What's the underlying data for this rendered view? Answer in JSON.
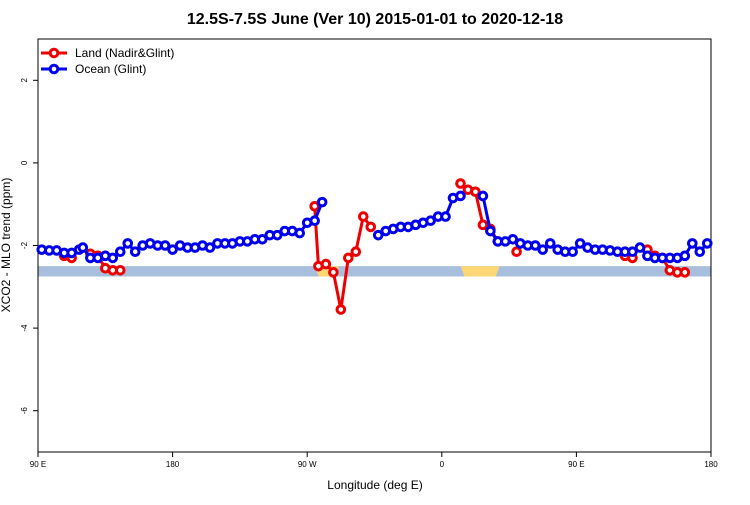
{
  "chart_data": {
    "type": "line",
    "title": "12.5S-7.5S June (Ver 10)   2015-01-01 to 2020-12-18",
    "xlabel": "Longitude (deg E)",
    "ylabel": "XCO2 - MLO trend (ppm)",
    "xlim": [
      90,
      450
    ],
    "ylim": [
      -7,
      3
    ],
    "x_ticks": [
      {
        "value": 90,
        "label": "90 E"
      },
      {
        "value": 162,
        "label": "180"
      },
      {
        "value": 234,
        "label": "90 W"
      },
      {
        "value": 306,
        "label": "0"
      },
      {
        "value": 378,
        "label": "90 E"
      },
      {
        "value": 450,
        "label": "180"
      }
    ],
    "y_ticks": [
      {
        "value": -6,
        "label": "-6"
      },
      {
        "value": -4,
        "label": "-4"
      },
      {
        "value": -2,
        "label": "-2"
      },
      {
        "value": 0,
        "label": "0"
      },
      {
        "value": 2,
        "label": "2"
      }
    ],
    "legend": {
      "position": "top-left",
      "entries": [
        {
          "label": "Land (Nadir&Glint)",
          "color": "#ee0000"
        },
        {
          "label": "Ocean (Glint)",
          "color": "#0000ee"
        }
      ]
    },
    "band": {
      "y_range": [
        -2.75,
        -2.5
      ],
      "ocean_color": "#a7bedc",
      "land_color": "#fdd776",
      "land_segments": [
        [
          238,
          251
        ],
        [
          316,
          337
        ]
      ]
    },
    "series": [
      {
        "name": "Land (Nadir&Glint)",
        "color": "#ee0000",
        "segments": [
          [
            [
              104,
              -2.25
            ],
            [
              108,
              -2.3
            ]
          ],
          [
            [
              118,
              -2.2
            ],
            [
              122,
              -2.25
            ],
            [
              126,
              -2.55
            ],
            [
              130,
              -2.6
            ],
            [
              134,
              -2.6
            ]
          ],
          [
            [
              238,
              -1.05
            ],
            [
              240,
              -2.5
            ],
            [
              244,
              -2.45
            ],
            [
              248,
              -2.65
            ],
            [
              252,
              -3.55
            ],
            [
              256,
              -2.3
            ],
            [
              260,
              -2.15
            ],
            [
              264,
              -1.3
            ],
            [
              268,
              -1.55
            ]
          ],
          [
            [
              316,
              -0.5
            ],
            [
              320,
              -0.65
            ],
            [
              324,
              -0.7
            ],
            [
              328,
              -1.5
            ],
            [
              332,
              -1.6
            ],
            [
              336,
              -1.9
            ]
          ],
          [
            [
              346,
              -2.15
            ]
          ],
          [
            [
              404,
              -2.25
            ],
            [
              408,
              -2.3
            ]
          ],
          [
            [
              416,
              -2.1
            ],
            [
              420,
              -2.25
            ],
            [
              424,
              -2.3
            ],
            [
              428,
              -2.6
            ],
            [
              432,
              -2.65
            ],
            [
              436,
              -2.65
            ]
          ]
        ]
      },
      {
        "name": "Ocean (Glint)",
        "color": "#0000ee",
        "segments": [
          [
            [
              92,
              -2.1
            ],
            [
              96,
              -2.12
            ],
            [
              100,
              -2.12
            ],
            [
              104,
              -2.18
            ],
            [
              108,
              -2.18
            ],
            [
              112,
              -2.1
            ],
            [
              114,
              -2.05
            ],
            [
              118,
              -2.3
            ],
            [
              122,
              -2.3
            ],
            [
              126,
              -2.25
            ],
            [
              130,
              -2.3
            ],
            [
              134,
              -2.15
            ],
            [
              138,
              -1.95
            ],
            [
              142,
              -2.15
            ],
            [
              146,
              -2.0
            ],
            [
              150,
              -1.95
            ],
            [
              154,
              -2.0
            ],
            [
              158,
              -2.0
            ],
            [
              162,
              -2.1
            ],
            [
              166,
              -2.0
            ],
            [
              170,
              -2.05
            ],
            [
              174,
              -2.05
            ],
            [
              178,
              -2.0
            ],
            [
              182,
              -2.05
            ],
            [
              186,
              -1.95
            ],
            [
              190,
              -1.95
            ],
            [
              194,
              -1.95
            ],
            [
              198,
              -1.9
            ],
            [
              202,
              -1.9
            ],
            [
              206,
              -1.85
            ],
            [
              210,
              -1.85
            ],
            [
              214,
              -1.75
            ],
            [
              218,
              -1.75
            ],
            [
              222,
              -1.65
            ],
            [
              226,
              -1.65
            ],
            [
              230,
              -1.7
            ],
            [
              234,
              -1.45
            ],
            [
              238,
              -1.4
            ],
            [
              242,
              -0.95
            ]
          ],
          [
            [
              272,
              -1.75
            ],
            [
              276,
              -1.65
            ],
            [
              280,
              -1.6
            ],
            [
              284,
              -1.55
            ],
            [
              288,
              -1.55
            ],
            [
              292,
              -1.5
            ],
            [
              296,
              -1.45
            ],
            [
              300,
              -1.4
            ],
            [
              304,
              -1.3
            ],
            [
              308,
              -1.3
            ],
            [
              312,
              -0.85
            ],
            [
              316,
              -0.8
            ]
          ],
          [
            [
              328,
              -0.8
            ],
            [
              332,
              -1.65
            ],
            [
              336,
              -1.9
            ],
            [
              340,
              -1.9
            ],
            [
              344,
              -1.85
            ],
            [
              348,
              -1.95
            ],
            [
              352,
              -2.0
            ],
            [
              356,
              -2.0
            ],
            [
              360,
              -2.1
            ],
            [
              364,
              -1.95
            ],
            [
              368,
              -2.1
            ],
            [
              372,
              -2.15
            ],
            [
              376,
              -2.15
            ],
            [
              380,
              -1.95
            ],
            [
              384,
              -2.05
            ],
            [
              388,
              -2.1
            ],
            [
              392,
              -2.1
            ],
            [
              396,
              -2.12
            ],
            [
              400,
              -2.15
            ],
            [
              404,
              -2.15
            ],
            [
              408,
              -2.15
            ],
            [
              412,
              -2.05
            ],
            [
              416,
              -2.25
            ],
            [
              420,
              -2.3
            ],
            [
              424,
              -2.3
            ],
            [
              428,
              -2.3
            ],
            [
              432,
              -2.3
            ],
            [
              436,
              -2.25
            ],
            [
              440,
              -1.95
            ],
            [
              444,
              -2.15
            ],
            [
              448,
              -1.95
            ]
          ]
        ]
      }
    ]
  }
}
